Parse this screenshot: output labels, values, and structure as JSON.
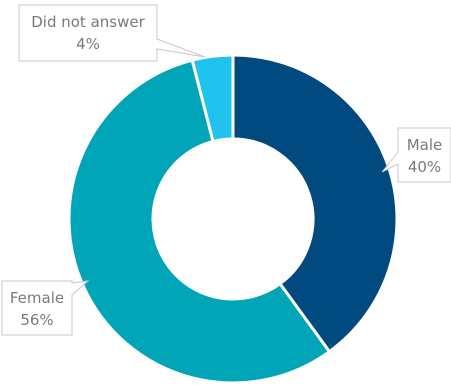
{
  "chart_data": {
    "type": "pie",
    "variant": "donut",
    "categories": [
      "Male",
      "Female",
      "Did not answer"
    ],
    "values": [
      40,
      56,
      4
    ],
    "value_labels": [
      "40%",
      "56%",
      "4%"
    ],
    "colors": [
      "#004A80",
      "#00A5B8",
      "#1FC3EE"
    ],
    "title": "",
    "legend": "none",
    "data_labels": "callouts"
  }
}
